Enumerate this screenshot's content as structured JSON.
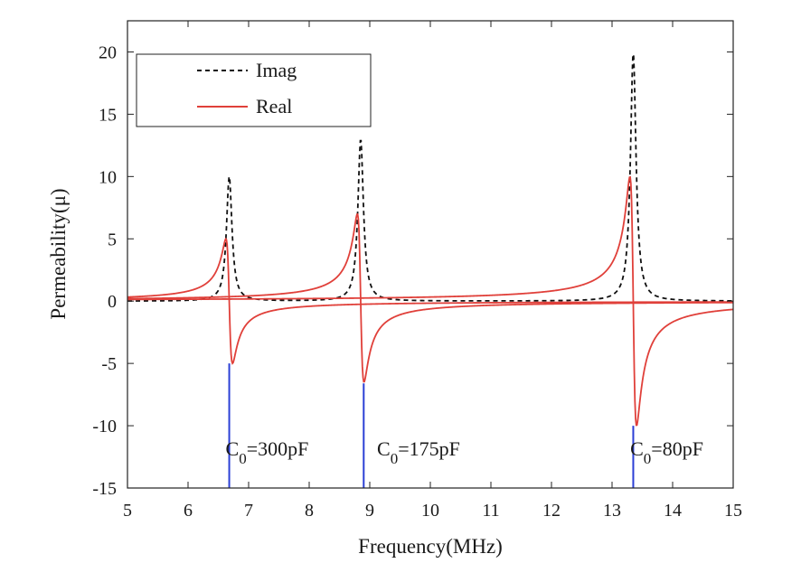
{
  "chart_data": {
    "type": "line",
    "title": "",
    "xlabel": "Frequency(MHz)",
    "ylabel": "Permeability(μ)",
    "xlim": [
      5,
      15
    ],
    "ylim": [
      -15,
      22.5
    ],
    "xticks": [
      5,
      6,
      7,
      8,
      9,
      10,
      11,
      12,
      13,
      14,
      15
    ],
    "yticks": [
      -15,
      -10,
      -5,
      0,
      5,
      10,
      15,
      20
    ],
    "grid": false,
    "legend": {
      "position": "top-left",
      "entries": [
        "Imag",
        "Real"
      ]
    },
    "series": [
      {
        "name": "Imag",
        "style": "dashed",
        "color": "#111111",
        "resonances": [
          {
            "f0": 6.68,
            "peak": 10
          },
          {
            "f0": 8.85,
            "peak": 13
          },
          {
            "f0": 13.35,
            "peak": 20
          }
        ]
      },
      {
        "name": "Real",
        "style": "solid",
        "color": "#e0403a",
        "resonances": [
          {
            "f0": 6.68,
            "max": 5,
            "min": -5
          },
          {
            "f0": 8.85,
            "max": 7,
            "min": -6.5
          },
          {
            "f0": 13.35,
            "max": 10,
            "min": -10
          }
        ]
      }
    ],
    "markers": [
      {
        "x": 6.68,
        "from": -15,
        "to": -5,
        "color": "#2b3fd6"
      },
      {
        "x": 8.9,
        "from": -15,
        "to": -6.6,
        "color": "#2b3fd6"
      },
      {
        "x": 13.35,
        "from": -15,
        "to": -10,
        "color": "#2b3fd6"
      }
    ],
    "annotations": [
      {
        "main": "C",
        "sub": "0",
        "rest": "=300pF",
        "x": 6.62,
        "y": -12.4
      },
      {
        "main": "C",
        "sub": "0",
        "rest": "=175pF",
        "x": 9.12,
        "y": -12.4
      },
      {
        "main": "C",
        "sub": "0",
        "rest": "=80pF",
        "x": 13.3,
        "y": -12.4
      }
    ]
  }
}
